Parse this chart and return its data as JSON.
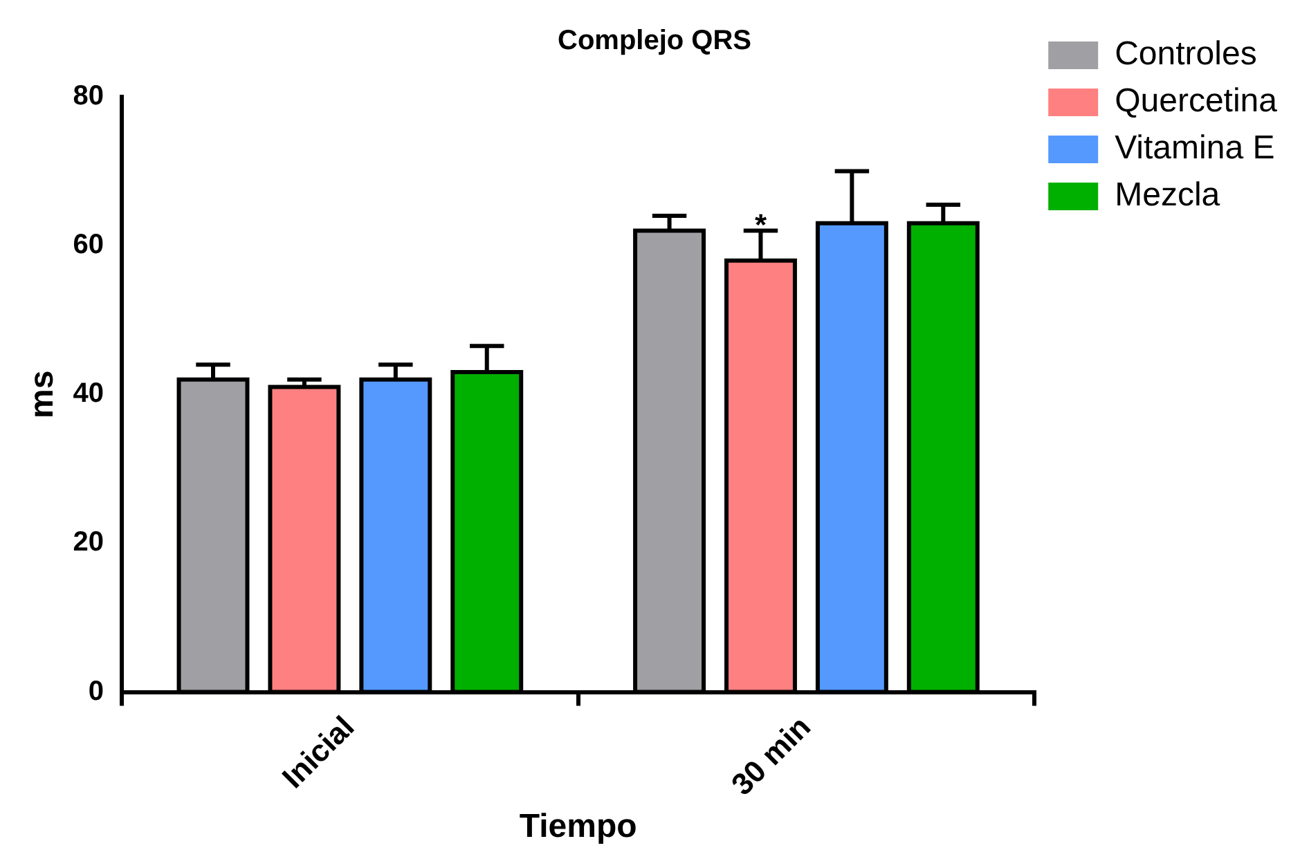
{
  "chart_data": {
    "type": "bar",
    "title": "Complejo QRS",
    "xlabel": "Tiempo",
    "ylabel": "ms",
    "categories": [
      "Inicial",
      "30 min"
    ],
    "series": [
      {
        "name": "Controles",
        "color": "#a0a0a4",
        "values": [
          42,
          62
        ],
        "errors": [
          [
            42,
            44
          ],
          [
            62,
            64
          ]
        ]
      },
      {
        "name": "Quercetina",
        "color": "#ff8080",
        "values": [
          41,
          58
        ],
        "errors": [
          [
            41,
            42
          ],
          [
            58,
            62
          ]
        ]
      },
      {
        "name": "Vitamina E",
        "color": "#5599ff",
        "values": [
          42,
          63
        ],
        "errors": [
          [
            42,
            44
          ],
          [
            63,
            70
          ]
        ]
      },
      {
        "name": "Mezcla",
        "color": "#00b000",
        "values": [
          43,
          63
        ],
        "errors": [
          [
            43,
            46.5
          ],
          [
            63,
            65.5
          ]
        ]
      }
    ],
    "annotations": [
      {
        "text": "*",
        "x": "30 min",
        "y": 62.5
      }
    ],
    "ylim": [
      0,
      80
    ],
    "yticks": [
      0,
      20,
      40,
      60,
      80
    ],
    "grid": false,
    "legend": "top right"
  }
}
